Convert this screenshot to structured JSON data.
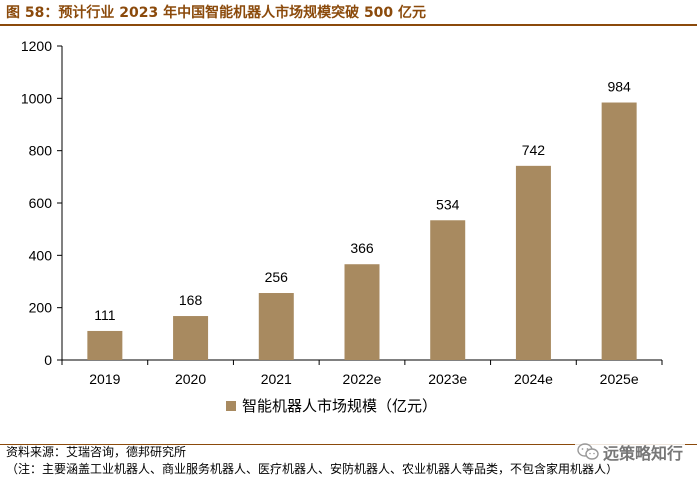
{
  "figure": {
    "title": "图 58：预计行业 2023 年中国智能机器人市场规模突破 500 亿元"
  },
  "chart_data": {
    "type": "bar",
    "categories": [
      "2019",
      "2020",
      "2021",
      "2022e",
      "2023e",
      "2024e",
      "2025e"
    ],
    "series": [
      {
        "name": "智能机器人市场规模（亿元）",
        "values": [
          111,
          168,
          256,
          366,
          534,
          742,
          984
        ]
      }
    ],
    "data_labels": [
      "111",
      "168",
      "256",
      "366",
      "534",
      "742",
      "984"
    ],
    "ylim": [
      0,
      1200
    ],
    "yticks": [
      0,
      200,
      400,
      600,
      800,
      1000,
      1200
    ],
    "ytick_labels": [
      "0",
      "200",
      "400",
      "600",
      "800",
      "1000",
      "1200"
    ],
    "xlabel": "",
    "ylabel": "",
    "grid": false,
    "legend_position": "bottom",
    "bar_color": "#A88A60"
  },
  "footer": {
    "source": "资料来源：艾瑞咨询，德邦研究所",
    "note": "（注：主要涵盖工业机器人、商业服务机器人、医疗机器人、安防机器人、农业机器人等品类，不包含家用机器人）",
    "watermark": "远策略知行",
    "watermark_icon": "wechat-icon"
  }
}
